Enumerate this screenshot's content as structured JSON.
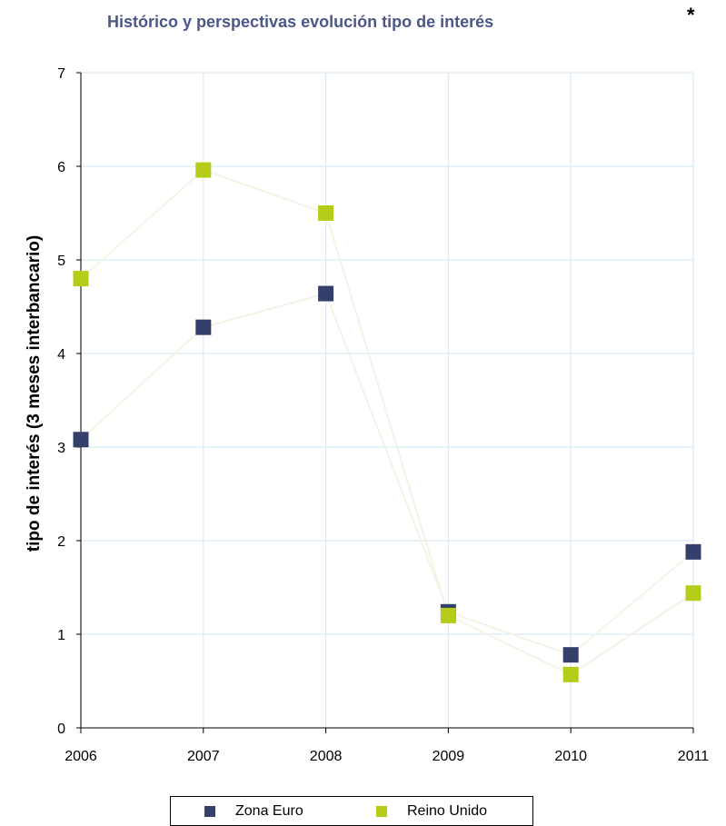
{
  "chart_data": {
    "type": "scatter",
    "title": "Histórico y perspectivas evolución tipo de interés",
    "title_mark": "*",
    "xlabel": "",
    "ylabel": "tipo de interés (3 meses interbancario)",
    "x": [
      2006,
      2007,
      2008,
      2009,
      2010,
      2011
    ],
    "x_tick_labels": [
      "2006",
      "2007",
      "2008",
      "2009",
      "2010",
      "2011"
    ],
    "y_tick_labels": [
      "0",
      "1",
      "2",
      "3",
      "4",
      "5",
      "6",
      "7"
    ],
    "xlim": [
      2006,
      2011
    ],
    "ylim": [
      0,
      7
    ],
    "grid": true,
    "legend_position": "bottom",
    "series": [
      {
        "name": "Zona Euro",
        "color": "#353f6b",
        "values": [
          3.08,
          4.28,
          4.64,
          1.24,
          0.78,
          1.88
        ]
      },
      {
        "name": "Reino Unido",
        "color": "#b5cc18",
        "values": [
          4.8,
          5.96,
          5.5,
          1.2,
          0.57,
          1.44
        ]
      }
    ]
  }
}
